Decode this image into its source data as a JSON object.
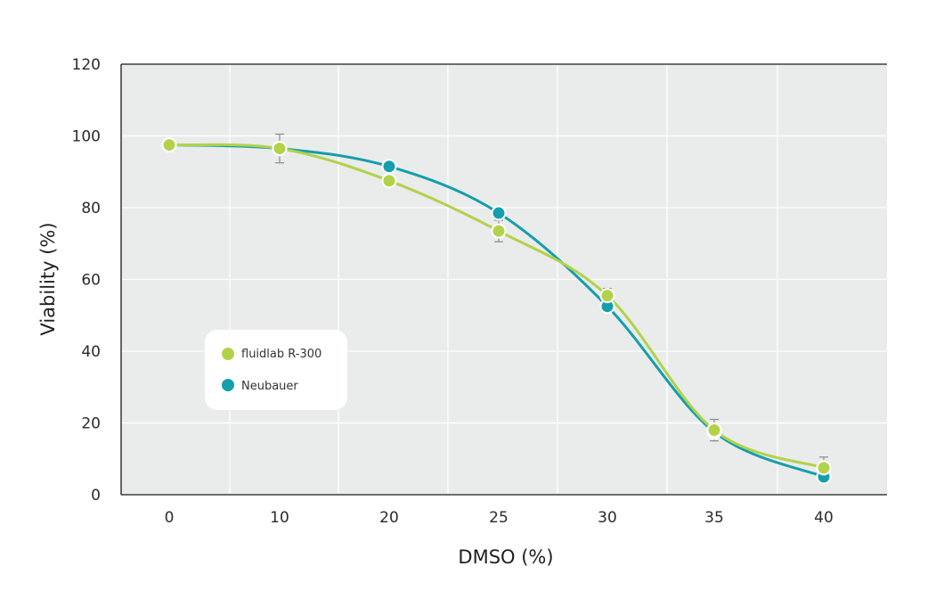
{
  "chart_data": {
    "type": "line",
    "xlabel": "DMSO (%)",
    "ylabel": "Viability (%)",
    "categories": [
      "0",
      "10",
      "20",
      "25",
      "30",
      "35",
      "40"
    ],
    "ylim": [
      0,
      120
    ],
    "yticks": [
      0,
      20,
      40,
      60,
      80,
      100,
      120
    ],
    "grid": true,
    "legend_position": "center-left",
    "series": [
      {
        "name": "fluidlab R-300",
        "color": "#b2d24a",
        "values": [
          97.5,
          96.5,
          87.5,
          73.5,
          55.5,
          18,
          7.5
        ],
        "error": [
          0,
          4,
          0,
          3,
          2,
          3,
          3
        ]
      },
      {
        "name": "Neubauer",
        "color": "#159eac",
        "values": [
          97.5,
          96.5,
          91.5,
          78.5,
          52.5,
          17.5,
          5
        ]
      }
    ]
  },
  "colors": {
    "plot_background": "#e9eceb",
    "grid": "#ffffff",
    "axis": "#1a1a1a",
    "error_bar": "#8c8c8c"
  }
}
